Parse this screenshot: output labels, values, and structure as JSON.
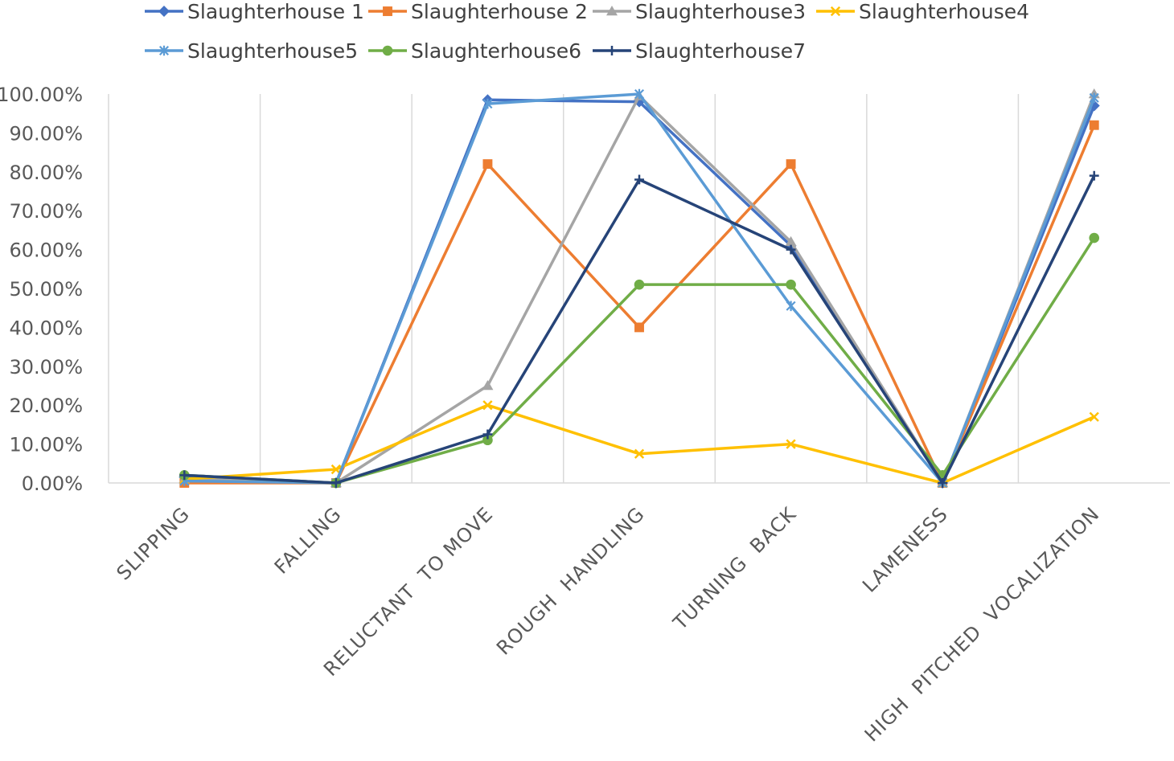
{
  "chart_data": {
    "type": "line",
    "categories": [
      "SLIPPING",
      "FALLING",
      "RELUCTANT  TO MOVE",
      "ROUGH  HANDLING",
      "TURNING  BACK",
      "LAMENESS",
      "HIGH  PITCHED  VOCALIZATION"
    ],
    "y_tick_labels": [
      "0.00%",
      "10.00%",
      "20.00%",
      "30.00%",
      "40.00%",
      "50.00%",
      "60.00%",
      "70.00%",
      "80.00%",
      "90.00%",
      "100.00%"
    ],
    "ylim": [
      0,
      100
    ],
    "y_unit": "percent",
    "grid": "vertical",
    "legend_position": "top",
    "series": [
      {
        "name": "Slaughterhouse 1",
        "color": "#4472C4",
        "marker": "diamond",
        "values": [
          1.5,
          0,
          98.5,
          98,
          61,
          0,
          97
        ]
      },
      {
        "name": "Slaughterhouse 2",
        "color": "#ED7D31",
        "marker": "square",
        "values": [
          0,
          0,
          82,
          40,
          82,
          0,
          92
        ]
      },
      {
        "name": "Slaughterhouse3",
        "color": "#A5A5A5",
        "marker": "triangle",
        "values": [
          1,
          0,
          25,
          99.5,
          62,
          0,
          100
        ]
      },
      {
        "name": "Slaughterhouse4",
        "color": "#FFC000",
        "marker": "x",
        "values": [
          1,
          3.5,
          20,
          7.5,
          10,
          0,
          17
        ]
      },
      {
        "name": "Slaughterhouse5",
        "color": "#5B9BD5",
        "marker": "asterisk",
        "values": [
          0.5,
          0,
          97.5,
          100,
          45.5,
          0,
          99
        ]
      },
      {
        "name": "Slaughterhouse6",
        "color": "#70AD47",
        "marker": "circle",
        "values": [
          2,
          0,
          11,
          51,
          51,
          2,
          63
        ]
      },
      {
        "name": "Slaughterhouse7",
        "color": "#264478",
        "marker": "plus",
        "values": [
          2,
          0,
          12.5,
          78,
          60,
          0,
          79
        ]
      }
    ]
  }
}
